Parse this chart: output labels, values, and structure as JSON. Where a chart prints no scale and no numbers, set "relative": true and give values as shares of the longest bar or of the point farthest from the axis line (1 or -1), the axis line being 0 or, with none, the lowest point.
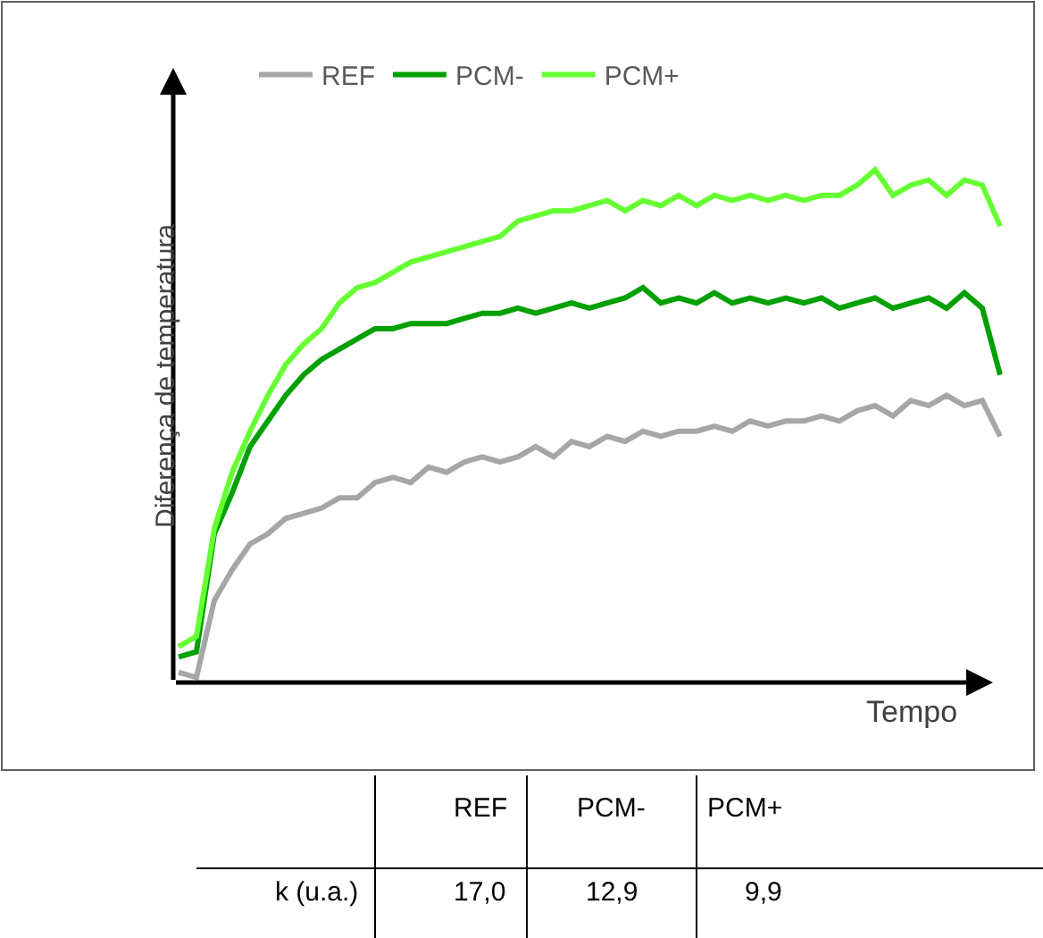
{
  "chart_data": {
    "type": "line",
    "relative": true,
    "ylabel": "Diferença de temperatura",
    "xlabel": "Tempo",
    "legend": "top",
    "marker": "none",
    "line_style": "solid",
    "categories": [
      null,
      null,
      null,
      null,
      null,
      null,
      null,
      null,
      null,
      null,
      null,
      null,
      null,
      null,
      null,
      null,
      null,
      null,
      null,
      null,
      null,
      null,
      null,
      null,
      null,
      null,
      null,
      null,
      null,
      null,
      null,
      null,
      null,
      null,
      null,
      null,
      null,
      null,
      null,
      null,
      null,
      null,
      null,
      null,
      null,
      null,
      null
    ],
    "series": [
      {
        "name": "REF",
        "color": "#a6a6a6",
        "values": [
          0.02,
          0.01,
          0.16,
          0.22,
          0.27,
          0.29,
          0.32,
          0.33,
          0.34,
          0.36,
          0.36,
          0.39,
          0.4,
          0.39,
          0.42,
          0.41,
          0.43,
          0.44,
          0.43,
          0.44,
          0.46,
          0.44,
          0.47,
          0.46,
          0.48,
          0.47,
          0.49,
          0.48,
          0.49,
          0.49,
          0.5,
          0.49,
          0.51,
          0.5,
          0.51,
          0.51,
          0.52,
          0.51,
          0.53,
          0.54,
          0.52,
          0.55,
          0.54,
          0.56,
          0.54,
          0.55,
          0.48
        ]
      },
      {
        "name": "PCM-",
        "color": "#00a000",
        "values": [
          0.05,
          0.06,
          0.29,
          0.37,
          0.46,
          0.51,
          0.56,
          0.6,
          0.63,
          0.65,
          0.67,
          0.69,
          0.69,
          0.7,
          0.7,
          0.7,
          0.71,
          0.72,
          0.72,
          0.73,
          0.72,
          0.73,
          0.74,
          0.73,
          0.74,
          0.75,
          0.77,
          0.74,
          0.75,
          0.74,
          0.76,
          0.74,
          0.75,
          0.74,
          0.75,
          0.74,
          0.75,
          0.73,
          0.74,
          0.75,
          0.73,
          0.74,
          0.75,
          0.73,
          0.76,
          0.73,
          0.6
        ]
      },
      {
        "name": "PCM+",
        "color": "#66ff33",
        "values": [
          0.07,
          0.09,
          0.3,
          0.41,
          0.49,
          0.56,
          0.62,
          0.66,
          0.69,
          0.74,
          0.77,
          0.78,
          0.8,
          0.82,
          0.83,
          0.84,
          0.85,
          0.86,
          0.87,
          0.9,
          0.91,
          0.92,
          0.92,
          0.93,
          0.94,
          0.92,
          0.94,
          0.93,
          0.95,
          0.93,
          0.95,
          0.94,
          0.95,
          0.94,
          0.95,
          0.94,
          0.95,
          0.95,
          0.97,
          1.0,
          0.95,
          0.97,
          0.98,
          0.95,
          0.98,
          0.97,
          0.89
        ]
      }
    ],
    "annotations": [
      "REF",
      "PCM-",
      "PCM+",
      "k (u.a.)",
      "17,0",
      "12,9",
      "9,9"
    ]
  }
}
